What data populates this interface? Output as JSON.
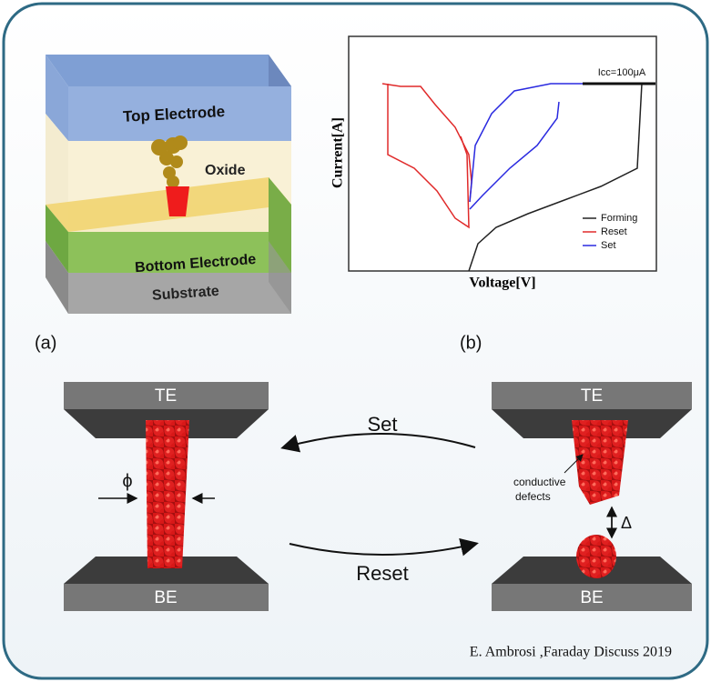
{
  "panel_a": {
    "layers": [
      "Top Electrode",
      "Oxide",
      "Bottom Electrode",
      "Substrate"
    ],
    "label": "(a)"
  },
  "panel_b": {
    "y_label": "Current[A]",
    "x_label": "Voltage[V]",
    "annotation": "Icc=100μA",
    "legend": [
      "Forming",
      "Reset",
      "Set"
    ],
    "label": "(b)"
  },
  "panel_c": {
    "left": {
      "top": "TE",
      "bottom": "BE",
      "symbol": "ϕ"
    },
    "right": {
      "top": "TE",
      "bottom": "BE",
      "note": [
        "conductive",
        "defects"
      ],
      "symbol": "Δ"
    },
    "arrows": [
      "Set",
      "Reset"
    ]
  },
  "citation": "E. Ambrosi ,Faraday Discuss 2019"
}
